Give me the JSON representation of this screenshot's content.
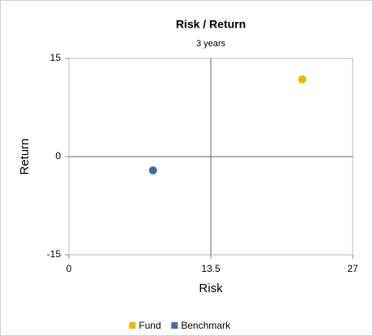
{
  "chart_data": {
    "type": "scatter",
    "title": "Risk / Return",
    "subtitle": "3 years",
    "x_label": "Risk",
    "y_label": "Return",
    "xlim": [
      0,
      27
    ],
    "xticks": [
      0,
      13.5,
      27
    ],
    "ylim": [
      -15,
      15
    ],
    "yticks": [
      -15,
      0,
      15
    ],
    "series": [
      {
        "name": "Fund",
        "color": "#f0b400",
        "x": [
          22.2
        ],
        "values": [
          11.8
        ]
      },
      {
        "name": "Benchmark",
        "color": "#3d6fa5",
        "x": [
          8.0
        ],
        "values": [
          -2.1
        ]
      }
    ]
  }
}
